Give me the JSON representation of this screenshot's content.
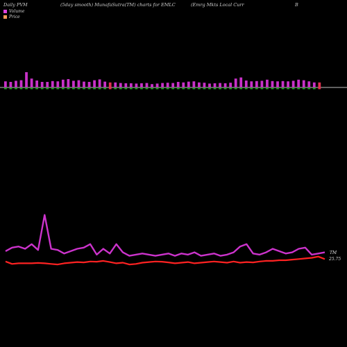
{
  "header": {
    "left": "Daily PVM",
    "center_left": "(5day smooth) MunafaSutra(TM) charts for EMLC",
    "center_right": "(Emrg Mkts Local Curr",
    "right": "B"
  },
  "legend": [
    {
      "label": "Volume",
      "color": "#e040e0"
    },
    {
      "label": "Price",
      "color": "#ff9a5a"
    }
  ],
  "colors": {
    "volume_up": "#c832c8",
    "volume_down": "#e03050",
    "volume_base": "#2aa02a",
    "pvm_line": "#cc33cc",
    "price_line": "#ff2222",
    "axis_line": "#ffffff"
  },
  "chart_data": {
    "type": "bar",
    "volume_bars": [
      {
        "v": 2.2,
        "d": 0
      },
      {
        "v": 2.0,
        "d": 0
      },
      {
        "v": 2.4,
        "d": 0
      },
      {
        "v": 2.6,
        "d": 0
      },
      {
        "v": 5.5,
        "d": 0
      },
      {
        "v": 3.2,
        "d": 0
      },
      {
        "v": 2.5,
        "d": 0
      },
      {
        "v": 2.0,
        "d": 0
      },
      {
        "v": 2.0,
        "d": 0
      },
      {
        "v": 2.3,
        "d": 0
      },
      {
        "v": 2.2,
        "d": 0
      },
      {
        "v": 2.8,
        "d": 0
      },
      {
        "v": 3.0,
        "d": 0
      },
      {
        "v": 2.4,
        "d": 0
      },
      {
        "v": 2.6,
        "d": 0
      },
      {
        "v": 2.1,
        "d": 0
      },
      {
        "v": 2.0,
        "d": 0
      },
      {
        "v": 2.6,
        "d": 0
      },
      {
        "v": 2.9,
        "d": 0
      },
      {
        "v": 2.1,
        "d": 0
      },
      {
        "v": 1.8,
        "d": 1
      },
      {
        "v": 1.8,
        "d": 0
      },
      {
        "v": 1.6,
        "d": 0
      },
      {
        "v": 1.5,
        "d": 0
      },
      {
        "v": 1.5,
        "d": 0
      },
      {
        "v": 1.4,
        "d": 0
      },
      {
        "v": 1.5,
        "d": 0
      },
      {
        "v": 1.6,
        "d": 0
      },
      {
        "v": 1.2,
        "d": 0
      },
      {
        "v": 1.4,
        "d": 0
      },
      {
        "v": 1.6,
        "d": 0
      },
      {
        "v": 1.7,
        "d": 0
      },
      {
        "v": 1.6,
        "d": 0
      },
      {
        "v": 2.0,
        "d": 0
      },
      {
        "v": 1.8,
        "d": 0
      },
      {
        "v": 2.1,
        "d": 0
      },
      {
        "v": 2.2,
        "d": 0
      },
      {
        "v": 1.8,
        "d": 0
      },
      {
        "v": 1.7,
        "d": 0
      },
      {
        "v": 1.4,
        "d": 0
      },
      {
        "v": 1.5,
        "d": 0
      },
      {
        "v": 1.6,
        "d": 0
      },
      {
        "v": 1.5,
        "d": 0
      },
      {
        "v": 1.7,
        "d": 0
      },
      {
        "v": 3.2,
        "d": 0
      },
      {
        "v": 3.6,
        "d": 0
      },
      {
        "v": 2.5,
        "d": 0
      },
      {
        "v": 2.2,
        "d": 0
      },
      {
        "v": 2.3,
        "d": 0
      },
      {
        "v": 2.4,
        "d": 0
      },
      {
        "v": 2.8,
        "d": 0
      },
      {
        "v": 2.3,
        "d": 0
      },
      {
        "v": 2.2,
        "d": 0
      },
      {
        "v": 2.3,
        "d": 0
      },
      {
        "v": 2.2,
        "d": 0
      },
      {
        "v": 2.4,
        "d": 0
      },
      {
        "v": 2.8,
        "d": 0
      },
      {
        "v": 2.6,
        "d": 0
      },
      {
        "v": 2.2,
        "d": 0
      },
      {
        "v": 1.8,
        "d": 0
      },
      {
        "v": 1.8,
        "d": 1
      }
    ],
    "pvm_values": [
      64,
      67,
      68,
      66,
      70,
      65,
      95,
      66,
      65,
      62,
      64,
      66,
      67,
      70,
      61,
      66,
      62,
      70,
      63,
      60,
      61,
      62,
      61,
      60,
      61,
      62,
      60,
      62,
      61,
      63,
      60,
      61,
      62,
      60,
      61,
      63,
      68,
      70,
      62,
      61,
      63,
      66,
      64,
      62,
      63,
      66,
      67,
      61,
      62,
      63
    ],
    "price_values": [
      25.2,
      25.0,
      25.05,
      25.05,
      25.05,
      25.08,
      25.05,
      25.0,
      24.95,
      25.05,
      25.1,
      25.15,
      25.12,
      25.2,
      25.18,
      25.25,
      25.15,
      25.05,
      25.1,
      24.95,
      25.0,
      25.1,
      25.15,
      25.2,
      25.18,
      25.12,
      25.05,
      25.1,
      25.15,
      25.05,
      25.1,
      25.15,
      25.2,
      25.15,
      25.1,
      25.2,
      25.1,
      25.15,
      25.12,
      25.2,
      25.25,
      25.25,
      25.3,
      25.3,
      25.35,
      25.4,
      25.45,
      25.5,
      25.6,
      25.4
    ],
    "pvm_label": "TM",
    "price_label": "25.75"
  }
}
